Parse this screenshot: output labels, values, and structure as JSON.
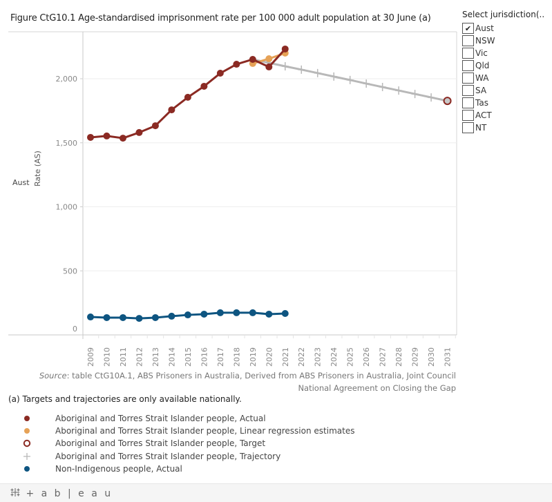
{
  "title": "Figure CtG10.1 Age-standardised imprisonment rate per 100 000 adult population at 30 June (a)",
  "filter": {
    "title": "Select jurisdiction(..",
    "items": [
      {
        "label": "Aust",
        "checked": true
      },
      {
        "label": "NSW",
        "checked": false
      },
      {
        "label": "Vic",
        "checked": false
      },
      {
        "label": "Qld",
        "checked": false
      },
      {
        "label": "WA",
        "checked": false
      },
      {
        "label": "SA",
        "checked": false
      },
      {
        "label": "Tas",
        "checked": false
      },
      {
        "label": "ACT",
        "checked": false
      },
      {
        "label": "NT",
        "checked": false
      }
    ],
    "check_glyph": "✔"
  },
  "row_label": "Aust",
  "source": {
    "lead": "Source",
    "text": ": table CtG10A.1, ABS Prisoners in Australia, Derived from ABS Prisoners in Australia, Joint Council National Agreement on Closing the Gap"
  },
  "footnote": "(a) Targets and trajectories are only available nationally.",
  "legend": [
    {
      "label": "Aboriginal and Torres Strait Islander people, Actual",
      "marker": "dot",
      "color": "#8b2a23"
    },
    {
      "label": "Aboriginal and Torres Strait Islander people, Linear regression estimates",
      "marker": "dot",
      "color": "#e6a257"
    },
    {
      "label": "Aboriginal and Torres Strait Islander people, Target",
      "marker": "ring",
      "color": "#8b2a23"
    },
    {
      "label": "Aboriginal and Torres Strait Islander people, Trajectory",
      "marker": "plus",
      "color": "#b8b8b8"
    },
    {
      "label": "Non-Indigenous people, Actual",
      "marker": "dot",
      "color": "#0e5581"
    }
  ],
  "footer": {
    "logo": "⁜+ableau",
    "logo_text": "+ a b | e a u"
  },
  "chart_data": {
    "type": "line",
    "title": "Figure CtG10.1 Age-standardised imprisonment rate per 100 000 adult population at 30 June (a)",
    "xlabel": "",
    "ylabel": "Rate (AS)",
    "ylim": [
      0,
      2370
    ],
    "yticks": [
      0,
      500,
      1000,
      1500,
      2000
    ],
    "ytick_labels": [
      "0",
      "500",
      "1,000",
      "1,500",
      "2,000"
    ],
    "x": [
      2009,
      2010,
      2011,
      2012,
      2013,
      2014,
      2015,
      2016,
      2017,
      2018,
      2019,
      2020,
      2021,
      2022,
      2023,
      2024,
      2025,
      2026,
      2027,
      2028,
      2029,
      2030,
      2031
    ],
    "grid": "horizontal",
    "legend_position": "bottom",
    "series": [
      {
        "name": "Aboriginal and Torres Strait Islander people, Trajectory",
        "color": "#b8b8b8",
        "marker": "plus",
        "x": [
          2019,
          2020,
          2021,
          2022,
          2023,
          2024,
          2025,
          2026,
          2027,
          2028,
          2029,
          2030,
          2031
        ],
        "values": [
          2151,
          2124,
          2097,
          2071,
          2044,
          2017,
          1990,
          1962,
          1935,
          1908,
          1881,
          1854,
          1827
        ]
      },
      {
        "name": "Aboriginal and Torres Strait Islander people, Linear regression estimates",
        "color": "#e6a257",
        "marker": "dot",
        "x": [
          2019,
          2020,
          2021
        ],
        "values": [
          2119,
          2156,
          2200
        ]
      },
      {
        "name": "Aboriginal and Torres Strait Islander people, Actual",
        "color": "#8b2a23",
        "marker": "dot",
        "x": [
          2009,
          2010,
          2011,
          2012,
          2013,
          2014,
          2015,
          2016,
          2017,
          2018,
          2019,
          2020,
          2021
        ],
        "values": [
          1542,
          1553,
          1536,
          1580,
          1633,
          1757,
          1855,
          1941,
          2043,
          2113,
          2151,
          2092,
          2232
        ]
      },
      {
        "name": "Aboriginal and Torres Strait Islander people, Target",
        "color": "#8b2a23",
        "marker": "ring",
        "x": [
          2031
        ],
        "values": [
          1827
        ]
      },
      {
        "name": "Non-Indigenous people, Actual",
        "color": "#0e5581",
        "marker": "dot",
        "x": [
          2009,
          2010,
          2011,
          2012,
          2013,
          2014,
          2015,
          2016,
          2017,
          2018,
          2019,
          2020,
          2021
        ],
        "values": [
          140,
          135,
          135,
          129,
          135,
          146,
          156,
          162,
          173,
          173,
          173,
          162,
          167
        ]
      }
    ]
  }
}
